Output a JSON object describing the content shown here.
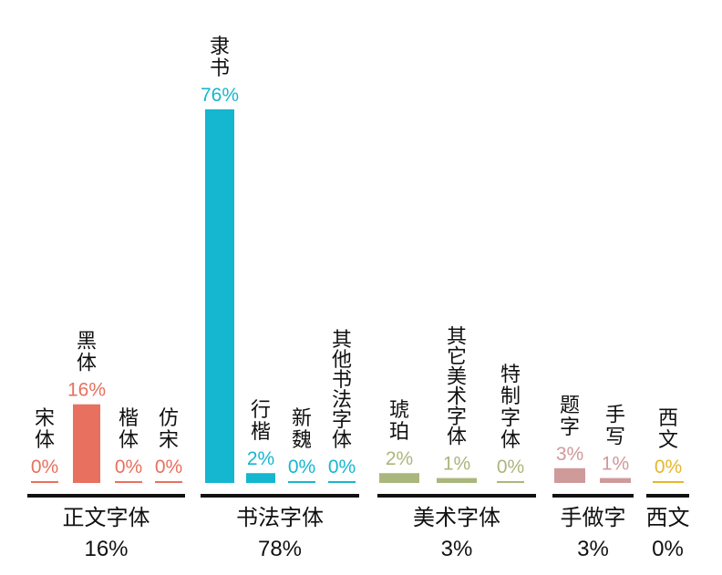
{
  "chart_data": {
    "type": "bar",
    "ylim": [
      0,
      76
    ],
    "colors": {
      "正文字体": "#e8705e",
      "书法字体": "#15b6cf",
      "美术字体": "#aab77c",
      "手做字": "#cf9a9a",
      "西文": "#e6b62c"
    },
    "groups": [
      {
        "name": "正文字体",
        "total": "16%",
        "items": [
          {
            "label": "宋体",
            "value": 0,
            "pct": "0%"
          },
          {
            "label": "黑体",
            "value": 16,
            "pct": "16%"
          },
          {
            "label": "楷体",
            "value": 0,
            "pct": "0%"
          },
          {
            "label": "仿宋",
            "value": 0,
            "pct": "0%"
          }
        ]
      },
      {
        "name": "书法字体",
        "total": "78%",
        "items": [
          {
            "label": "隶书",
            "value": 76,
            "pct": "76%"
          },
          {
            "label": "行楷",
            "value": 2,
            "pct": "2%"
          },
          {
            "label": "新魏",
            "value": 0,
            "pct": "0%"
          },
          {
            "label": "其他书法字体",
            "value": 0,
            "pct": "0%"
          }
        ]
      },
      {
        "name": "美术字体",
        "total": "3%",
        "items": [
          {
            "label": "琥珀",
            "value": 2,
            "pct": "2%"
          },
          {
            "label": "其它美术字体",
            "value": 1,
            "pct": "1%"
          },
          {
            "label": "特制字体",
            "value": 0,
            "pct": "0%"
          }
        ]
      },
      {
        "name": "手做字",
        "total": "3%",
        "items": [
          {
            "label": "题字",
            "value": 3,
            "pct": "3%"
          },
          {
            "label": "手写",
            "value": 1,
            "pct": "1%"
          }
        ]
      },
      {
        "name": "西文",
        "total": "0%",
        "items": [
          {
            "label": "西文",
            "value": 0,
            "pct": "0%"
          }
        ]
      }
    ]
  }
}
